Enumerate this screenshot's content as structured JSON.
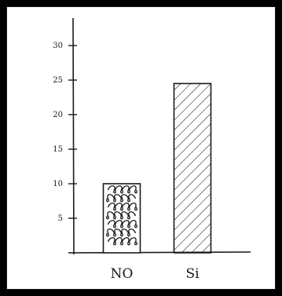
{
  "chart_data": {
    "type": "bar",
    "categories": [
      "NO",
      "Si"
    ],
    "values": [
      10,
      24.5
    ],
    "ylim": [
      0,
      32
    ],
    "yticks": [
      5,
      10,
      15,
      20,
      25,
      30
    ],
    "ytick_labels": [
      "5",
      "10",
      "15",
      "20",
      "25",
      "30"
    ],
    "title": "",
    "xlabel": "",
    "ylabel": "",
    "grid": false,
    "hand_drawn": true,
    "bar_patterns": [
      "squiggle",
      "diagonal-hatch"
    ]
  },
  "colors": {
    "ink": "#1a1a1a",
    "paper": "#ffffff",
    "border": "#000000"
  }
}
